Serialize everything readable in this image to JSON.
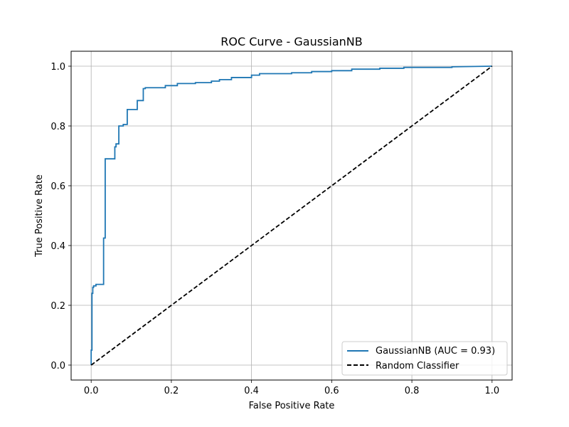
{
  "chart_data": {
    "type": "line",
    "title": "ROC Curve - GaussianNB",
    "xlabel": "False Positive Rate",
    "ylabel": "True Positive Rate",
    "xlim": [
      -0.05,
      1.05
    ],
    "ylim": [
      -0.05,
      1.05
    ],
    "x_ticks": [
      0.0,
      0.2,
      0.4,
      0.6,
      0.8,
      1.0
    ],
    "y_ticks": [
      0.0,
      0.2,
      0.4,
      0.6,
      0.8,
      1.0
    ],
    "x_tick_labels": [
      "0.0",
      "0.2",
      "0.4",
      "0.6",
      "0.8",
      "1.0"
    ],
    "y_tick_labels": [
      "0.0",
      "0.2",
      "0.4",
      "0.6",
      "0.8",
      "1.0"
    ],
    "grid": true,
    "legend_position": "lower-right",
    "series": [
      {
        "name": "GaussianNB (AUC = 0.93)",
        "color": "#1f77b4",
        "style": "solid",
        "x": [
          0.0,
          0.0,
          0.002,
          0.002,
          0.004,
          0.004,
          0.006,
          0.006,
          0.012,
          0.012,
          0.018,
          0.018,
          0.031,
          0.031,
          0.035,
          0.035,
          0.059,
          0.059,
          0.062,
          0.062,
          0.069,
          0.069,
          0.08,
          0.08,
          0.09,
          0.09,
          0.115,
          0.115,
          0.13,
          0.13,
          0.135,
          0.135,
          0.185,
          0.185,
          0.215,
          0.215,
          0.26,
          0.26,
          0.3,
          0.3,
          0.32,
          0.32,
          0.35,
          0.35,
          0.4,
          0.4,
          0.42,
          0.42,
          0.5,
          0.5,
          0.55,
          0.55,
          0.6,
          0.6,
          0.65,
          0.65,
          0.72,
          0.72,
          0.78,
          0.78,
          0.9,
          0.9,
          1.0
        ],
        "y": [
          0.0,
          0.05,
          0.05,
          0.24,
          0.24,
          0.26,
          0.26,
          0.265,
          0.265,
          0.27,
          0.27,
          0.27,
          0.27,
          0.425,
          0.425,
          0.69,
          0.69,
          0.73,
          0.73,
          0.74,
          0.74,
          0.8,
          0.8,
          0.805,
          0.805,
          0.855,
          0.855,
          0.885,
          0.885,
          0.925,
          0.925,
          0.928,
          0.928,
          0.935,
          0.935,
          0.942,
          0.942,
          0.945,
          0.945,
          0.95,
          0.95,
          0.955,
          0.955,
          0.962,
          0.962,
          0.97,
          0.97,
          0.975,
          0.975,
          0.978,
          0.978,
          0.982,
          0.982,
          0.985,
          0.985,
          0.99,
          0.99,
          0.993,
          0.993,
          0.996,
          0.996,
          0.998,
          1.0
        ]
      },
      {
        "name": "Random Classifier",
        "color": "#000000",
        "style": "dashed",
        "x": [
          0.0,
          1.0
        ],
        "y": [
          0.0,
          1.0
        ]
      }
    ]
  }
}
